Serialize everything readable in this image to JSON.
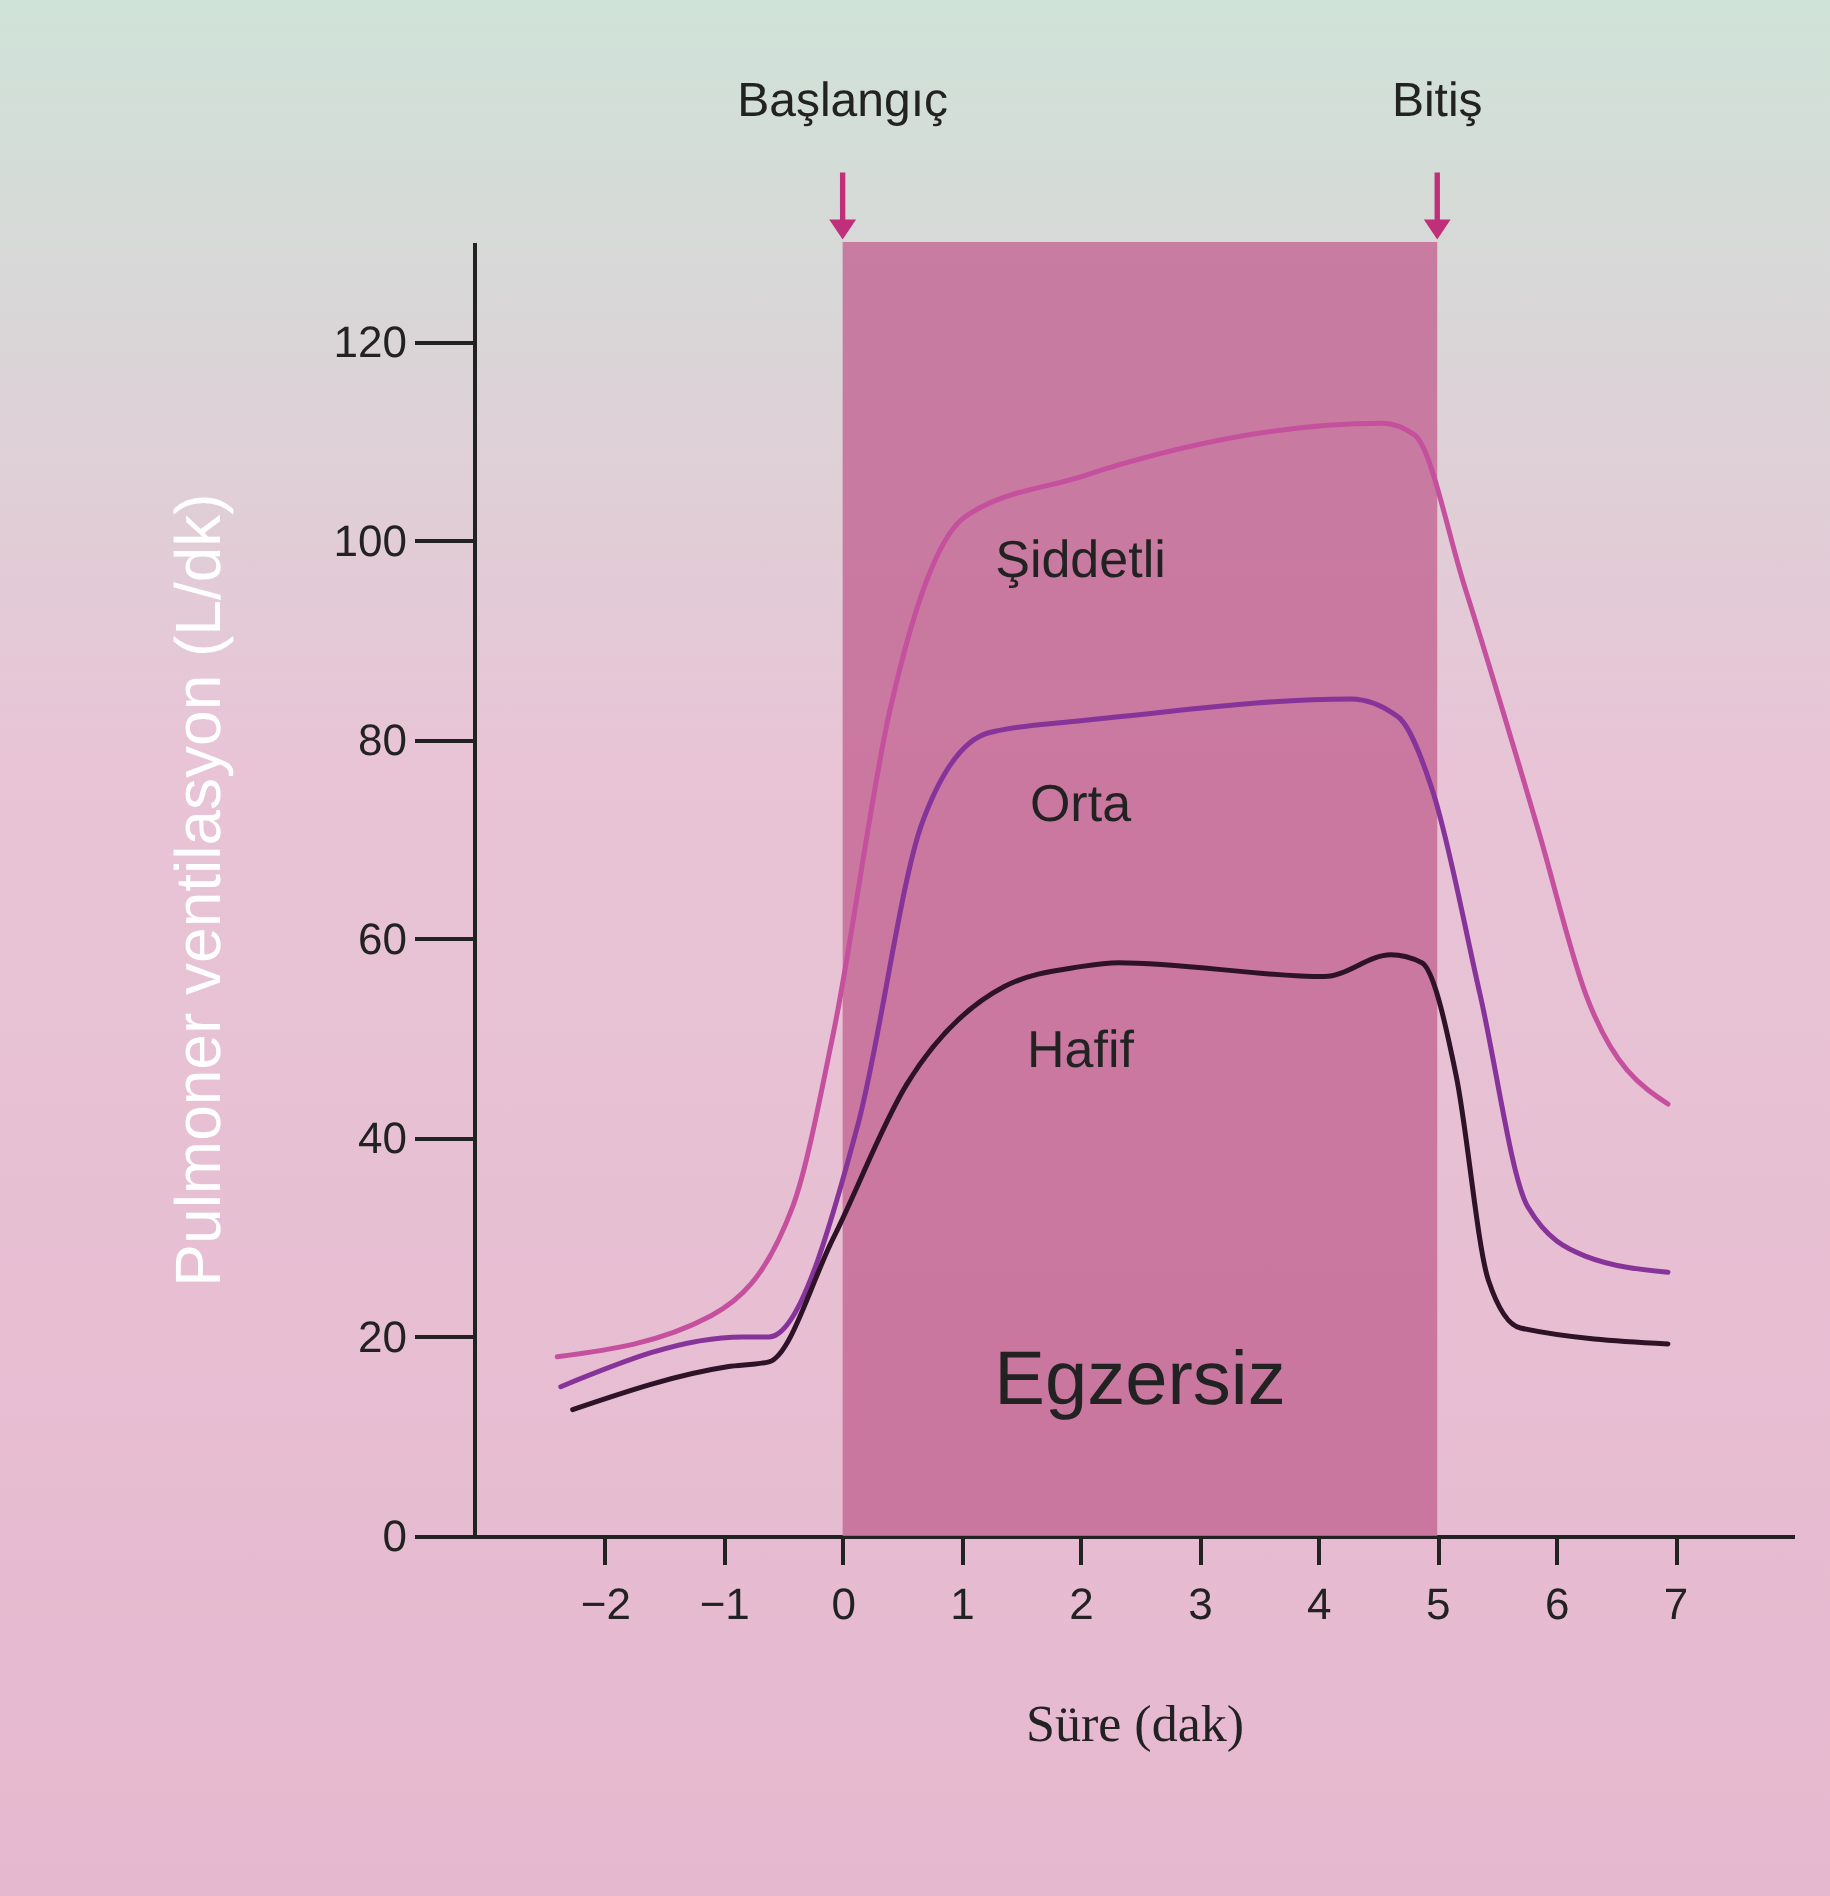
{
  "chart_data": {
    "type": "line",
    "xlabel": "Süre (dak)",
    "ylabel": "Pulmoner ventilasyon (L/dk)",
    "xlim": [
      -3.1,
      8
    ],
    "xticks": [
      -2,
      -1,
      0,
      1,
      2,
      3,
      4,
      5,
      6,
      7
    ],
    "ylim": [
      0,
      130
    ],
    "yticks": [
      0,
      20,
      40,
      60,
      80,
      100,
      120
    ],
    "grid": false,
    "legend": false,
    "line_style": "solid",
    "marker": "none",
    "series": [
      {
        "name": "Şiddetli",
        "color": "#c4509e",
        "x": [
          -2.4,
          -1.11,
          -0.42,
          -0.08,
          0.4,
          0.74,
          1.03,
          2.0,
          2.32,
          4.54,
          4.81,
          5.23,
          5.85,
          6.25,
          6.94
        ],
        "values": [
          18,
          22.1,
          33.1,
          50.4,
          83.1,
          97,
          102.4,
          106.4,
          107.6,
          111.8,
          110.6,
          95.4,
          70.9,
          54.4,
          43.4
        ]
      },
      {
        "name": "Orta",
        "color": "#86349a",
        "x": [
          -2.37,
          -0.84,
          -0.62,
          0.13,
          0.67,
          1.23,
          2.0,
          2.32,
          4.27,
          4.67,
          4.96,
          5.36,
          5.76,
          6.25,
          6.94
        ],
        "values": [
          15,
          20,
          20,
          41.4,
          71.7,
          80.7,
          81.9,
          82.3,
          84.1,
          82.3,
          74.9,
          54.4,
          33.1,
          28.1,
          26.5
        ]
      },
      {
        "name": "Hafif",
        "color": "#2e1228",
        "x": [
          -2.27,
          -0.97,
          -0.62,
          -0.08,
          0.54,
          1.36,
          2.0,
          2.32,
          4.05,
          4.61,
          4.87,
          5.16,
          5.43,
          5.7,
          6.94
        ],
        "values": [
          12.7,
          17,
          17.5,
          29.9,
          45.4,
          55.2,
          57.2,
          57.6,
          56.2,
          58.4,
          57.6,
          46.2,
          25.7,
          20.9,
          19.3
        ]
      }
    ],
    "bands": [
      {
        "axis": "x",
        "from": 0,
        "to": 5,
        "label": "Egzersiz",
        "color": "#c46b97"
      }
    ],
    "annotations": [
      "Başlangıç",
      "Bitiş"
    ]
  }
}
